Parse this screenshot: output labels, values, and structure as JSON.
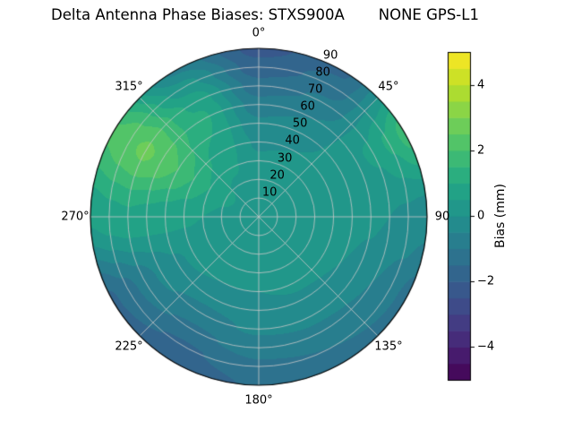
{
  "chart_data": {
    "type": "heatmap",
    "projection": "polar",
    "title_left": "Delta Antenna Phase Biases: STXS900A",
    "title_right": "NONE GPS-L1",
    "colorbar_label": "Bias (mm)",
    "value_range": [
      -5,
      5
    ],
    "band_step": 0.5,
    "colorbar_ticks": [
      {
        "value": 4,
        "label": "4"
      },
      {
        "value": 2,
        "label": "2"
      },
      {
        "value": 0,
        "label": "0"
      },
      {
        "value": -2,
        "label": "−2"
      },
      {
        "value": -4,
        "label": "−4"
      }
    ],
    "angular_ticks": [
      {
        "deg": 0,
        "label": "0°"
      },
      {
        "deg": 45,
        "label": "45°"
      },
      {
        "deg": 90,
        "label": "90"
      },
      {
        "deg": 135,
        "label": "135°"
      },
      {
        "deg": 180,
        "label": "180°"
      },
      {
        "deg": 225,
        "label": "225°"
      },
      {
        "deg": 270,
        "label": "270°"
      },
      {
        "deg": 315,
        "label": "315°"
      }
    ],
    "radial_ticks": [
      {
        "value": 10,
        "label": "10"
      },
      {
        "value": 20,
        "label": "20"
      },
      {
        "value": 30,
        "label": "30"
      },
      {
        "value": 40,
        "label": "40"
      },
      {
        "value": 50,
        "label": "50"
      },
      {
        "value": 60,
        "label": "60"
      },
      {
        "value": 70,
        "label": "70"
      },
      {
        "value": 80,
        "label": "80"
      },
      {
        "value": 90,
        "label": "90"
      }
    ],
    "radial_label_angle_deg": 24,
    "azimuth_deg": [
      0,
      30,
      60,
      90,
      120,
      150,
      180,
      210,
      240,
      270,
      300,
      330,
      360
    ],
    "zenith_deg": [
      0,
      10,
      20,
      30,
      40,
      50,
      60,
      70,
      80,
      90
    ],
    "bias_mm": [
      [
        0.3,
        0.3,
        0.2,
        0.1,
        -0.1,
        -0.4,
        -0.8,
        -1.3,
        -1.8,
        -2.2
      ],
      [
        0.3,
        0.3,
        0.2,
        0.2,
        0.0,
        -0.2,
        -0.5,
        -0.9,
        -1.3,
        -1.6
      ],
      [
        0.3,
        0.3,
        0.3,
        0.3,
        0.3,
        0.3,
        0.4,
        0.6,
        1.1,
        1.7
      ],
      [
        0.3,
        0.3,
        0.3,
        0.3,
        0.2,
        0.2,
        0.1,
        0.0,
        -0.1,
        -0.3
      ],
      [
        0.3,
        0.3,
        0.3,
        0.2,
        0.1,
        0.0,
        -0.2,
        -0.5,
        -0.8,
        -1.2
      ],
      [
        0.3,
        0.3,
        0.2,
        0.2,
        0.1,
        -0.1,
        -0.3,
        -0.7,
        -1.0,
        -1.4
      ],
      [
        0.3,
        0.3,
        0.2,
        0.2,
        0.0,
        -0.2,
        -0.4,
        -0.8,
        -1.1,
        -1.4
      ],
      [
        0.3,
        0.3,
        0.2,
        0.1,
        0.0,
        -0.3,
        -0.7,
        -1.1,
        -1.6,
        -2.0
      ],
      [
        0.3,
        0.3,
        0.2,
        0.2,
        0.1,
        -0.1,
        -0.4,
        -0.8,
        -1.2,
        -1.6
      ],
      [
        0.3,
        0.3,
        0.4,
        0.5,
        0.6,
        0.7,
        0.8,
        0.9,
        0.8,
        0.6
      ],
      [
        0.3,
        0.4,
        0.6,
        1.0,
        1.5,
        2.0,
        2.4,
        2.6,
        2.4,
        2.1
      ],
      [
        0.3,
        0.4,
        0.4,
        0.6,
        0.8,
        1.0,
        1.1,
        0.9,
        0.2,
        -0.6
      ],
      [
        0.3,
        0.3,
        0.2,
        0.1,
        -0.1,
        -0.4,
        -0.8,
        -1.3,
        -1.8,
        -2.2
      ]
    ],
    "colormap": {
      "name": "viridis",
      "stops": [
        [
          0.0,
          "#440154"
        ],
        [
          0.1,
          "#482475"
        ],
        [
          0.2,
          "#414487"
        ],
        [
          0.3,
          "#355f8d"
        ],
        [
          0.4,
          "#2a788e"
        ],
        [
          0.5,
          "#21918c"
        ],
        [
          0.6,
          "#22a884"
        ],
        [
          0.7,
          "#44bf70"
        ],
        [
          0.8,
          "#7ad151"
        ],
        [
          0.9,
          "#bddf26"
        ],
        [
          1.0,
          "#fde725"
        ]
      ]
    },
    "grid_color": "#c9c9c9",
    "outline_color": "#000000",
    "background_color": "#ffffff"
  }
}
